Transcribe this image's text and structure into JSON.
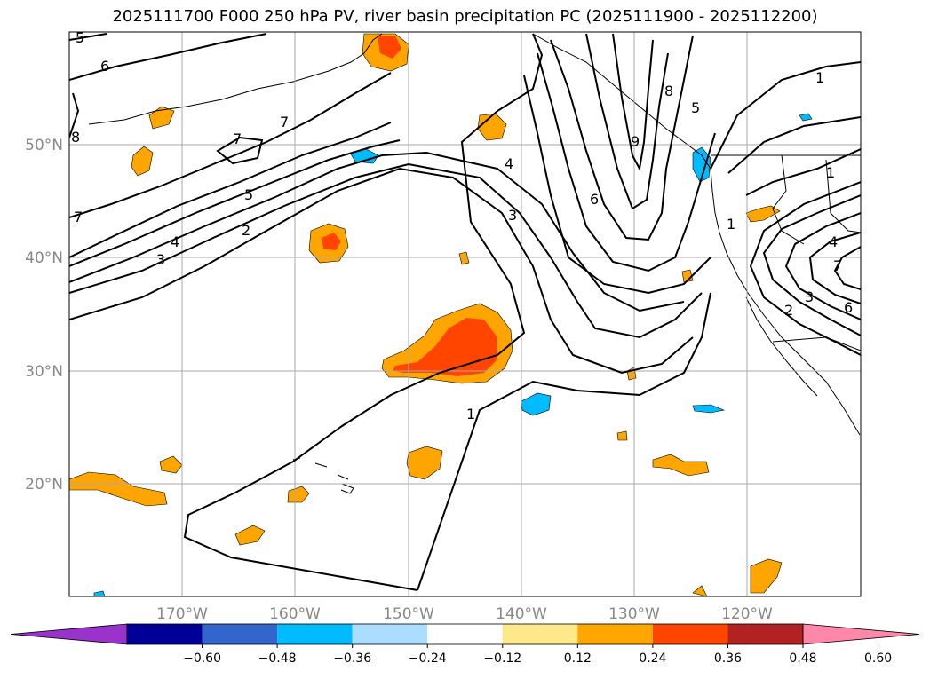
{
  "title": "2025111700 F000 250 hPa PV, river basin precipitation PC (2025111900 - 2025112200)",
  "map": {
    "lon_ticks": [
      "170°W",
      "160°W",
      "150°W",
      "140°W",
      "130°W",
      "120°W"
    ],
    "lat_ticks": [
      "50°N",
      "40°N",
      "30°N",
      "20°N"
    ],
    "grid": true
  },
  "colorbar": {
    "colors": [
      "#9933cc",
      "#000099",
      "#3366cc",
      "#00bbff",
      "#aaddff",
      "#ffffff",
      "#ffe88a",
      "#ffa500",
      "#ff4500",
      "#b22222",
      "#ff88aa"
    ],
    "labels": [
      "−0.60",
      "−0.48",
      "−0.36",
      "−0.24",
      "−0.12",
      "0.12",
      "0.24",
      "0.36",
      "0.48",
      "0.60"
    ],
    "extend": "both"
  },
  "contour_labels": [
    "5",
    "6",
    "7",
    "7",
    "8",
    "7",
    "5",
    "4",
    "3",
    "2",
    "3",
    "4",
    "1",
    "6",
    "8",
    "9",
    "5",
    "1",
    "1",
    "4",
    "7",
    "6",
    "2",
    "3",
    "1"
  ]
}
